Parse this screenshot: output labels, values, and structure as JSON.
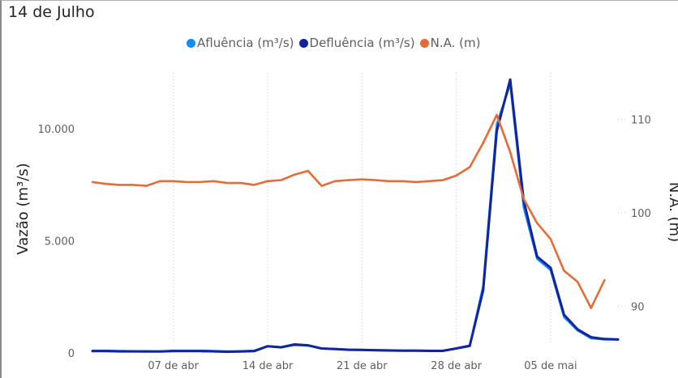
{
  "title": "14 de Julho",
  "colors": {
    "afluencia": "#118DFF",
    "defluencia": "#12239E",
    "na": "#E66C37"
  },
  "chart_data": {
    "type": "line",
    "xlabel": "",
    "ylabel_left": "Vazão (m³/s)",
    "ylabel_right": "N.A. (m)",
    "x_ticks": [
      "07 de abr",
      "14 de abr",
      "21 de abr",
      "28 de abr",
      "05 de mai"
    ],
    "x_tick_days": [
      7,
      14,
      21,
      28,
      35
    ],
    "xlim": [
      1,
      40
    ],
    "ylim_left": [
      0,
      12500
    ],
    "ylim_right": [
      85,
      115
    ],
    "y_ticks_left": [
      0,
      5000,
      10000
    ],
    "y_tick_labels_left": [
      "0",
      "5.000",
      "10.000"
    ],
    "y_ticks_right": [
      90,
      100,
      110
    ],
    "y_tick_labels_right": [
      "90",
      "100",
      "110"
    ],
    "grid": "vertical dotted",
    "legend": "top",
    "x": [
      1,
      2,
      3,
      4,
      5,
      6,
      7,
      8,
      9,
      10,
      11,
      12,
      13,
      14,
      15,
      16,
      17,
      18,
      19,
      20,
      21,
      22,
      23,
      24,
      25,
      26,
      27,
      28,
      29,
      30,
      31,
      32,
      33,
      34,
      35,
      36,
      37,
      38,
      39,
      40
    ],
    "series": [
      {
        "name": "Afluência (m³/s)",
        "axis": "left",
        "values": [
          100,
          100,
          90,
          80,
          80,
          70,
          100,
          100,
          100,
          90,
          70,
          80,
          100,
          300,
          260,
          350,
          320,
          200,
          180,
          150,
          140,
          130,
          120,
          110,
          110,
          100,
          100,
          200,
          300,
          3000,
          10200,
          12000,
          6500,
          4200,
          3700,
          1600,
          1000,
          650,
          600,
          600
        ]
      },
      {
        "name": "Defluência (m³/s)",
        "axis": "left",
        "values": [
          80,
          80,
          70,
          70,
          60,
          60,
          80,
          80,
          80,
          70,
          50,
          60,
          80,
          300,
          250,
          380,
          340,
          200,
          170,
          140,
          130,
          120,
          110,
          100,
          100,
          90,
          90,
          200,
          320,
          2800,
          9900,
          12200,
          6800,
          4300,
          3800,
          1700,
          1050,
          700,
          620,
          600
        ]
      },
      {
        "name": "N.A. (m)",
        "axis": "right",
        "values": [
          103.3,
          103.1,
          103.0,
          103.0,
          102.9,
          103.4,
          103.4,
          103.3,
          103.3,
          103.4,
          103.2,
          103.2,
          103.0,
          103.4,
          103.5,
          104.1,
          104.5,
          102.9,
          103.4,
          103.5,
          103.6,
          103.5,
          103.4,
          103.4,
          103.3,
          103.4,
          103.5,
          104.0,
          104.9,
          107.5,
          110.5,
          106.5,
          101.5,
          98.9,
          97.2,
          93.8,
          92.6,
          89.8,
          92.8,
          null
        ]
      }
    ]
  }
}
